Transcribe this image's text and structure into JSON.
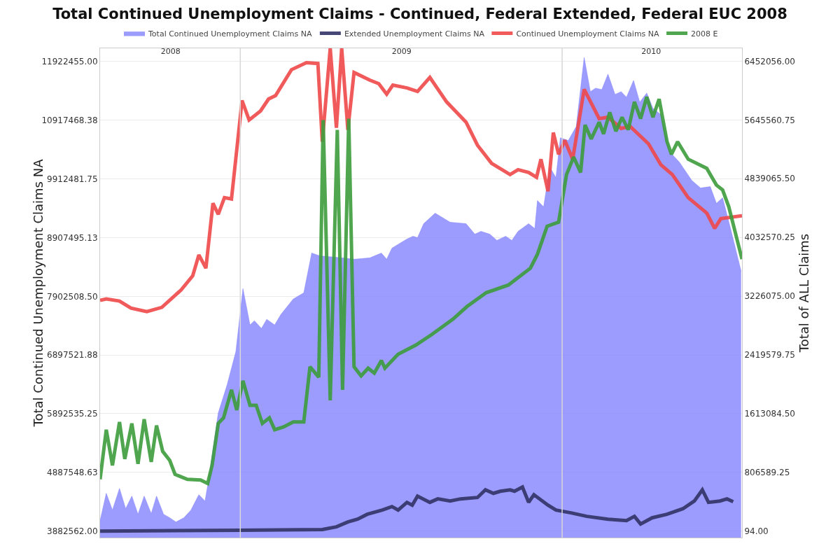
{
  "chart_data": {
    "type": "line",
    "title": "Total Continued Unemployment Claims - Continued, Federal Extended, Federal EUC 2008",
    "ylabel": "Total Continued Unemployment Claims NA",
    "y2label": "Total of ALL Claims",
    "legend": "top",
    "grid": "y",
    "marker": "none",
    "line_style": "solid",
    "xlim": [
      "2008-07-26",
      "2010-07-24"
    ],
    "xticks": [
      {
        "value": "2008-10-14",
        "label": "2008"
      },
      {
        "value": "2009-07-03",
        "label": "2009"
      },
      {
        "value": "2010-04-12",
        "label": "2010"
      }
    ],
    "ref_lines": [
      {
        "axis": "x",
        "value": "2009-01-01",
        "label": null,
        "color": "#d8d8d8"
      },
      {
        "axis": "x",
        "value": "2010-01-01",
        "label": null,
        "color": "#d8d8d8"
      }
    ],
    "ylim": [
      3770000,
      12150000
    ],
    "yticks": [
      {
        "value": 3882562,
        "label": "3882562.00"
      },
      {
        "value": 4887548.63,
        "label": "4887548.63"
      },
      {
        "value": 5892535.25,
        "label": "5892535.25"
      },
      {
        "value": 6897521.88,
        "label": "6897521.88"
      },
      {
        "value": 7902508.5,
        "label": "7902508.50"
      },
      {
        "value": 8907495.13,
        "label": "8907495.13"
      },
      {
        "value": 9912481.75,
        "label": "9912481.75"
      },
      {
        "value": 10917468.38,
        "label": "10917468.38"
      },
      {
        "value": 11922455,
        "label": "11922455.00"
      }
    ],
    "y2lim": [
      -90000,
      6630000
    ],
    "y2ticks": [
      {
        "value": 94,
        "label": "94.00"
      },
      {
        "value": 806589.25,
        "label": "806589.25"
      },
      {
        "value": 1613084.5,
        "label": "1613084.50"
      },
      {
        "value": 2419579.75,
        "label": "2419579.75"
      },
      {
        "value": 3226075,
        "label": "3226075.00"
      },
      {
        "value": 4032570.25,
        "label": "4032570.25"
      },
      {
        "value": 4839065.5,
        "label": "4839065.50"
      },
      {
        "value": 5645560.75,
        "label": "5645560.75"
      },
      {
        "value": 6452056,
        "label": "6452056.00"
      }
    ],
    "series": [
      {
        "name": "Total Continued Unemployment Claims NA",
        "type": "area",
        "color": "#8080ff",
        "x": [
          "2008-07-26",
          "2008-08-02",
          "2008-08-09",
          "2008-08-17",
          "2008-08-24",
          "2008-08-31",
          "2008-09-07",
          "2008-09-14",
          "2008-09-22",
          "2008-09-28",
          "2008-10-06",
          "2008-10-13",
          "2008-10-20",
          "2008-10-29",
          "2008-11-06",
          "2008-11-15",
          "2008-11-22",
          "2008-11-25",
          "2008-12-07",
          "2008-12-17",
          "2008-12-27",
          "2009-01-04",
          "2009-01-12",
          "2009-01-17",
          "2009-01-25",
          "2009-01-31",
          "2009-02-09",
          "2009-02-16",
          "2009-03-02",
          "2009-03-14",
          "2009-03-23",
          "2009-04-01",
          "2009-04-26",
          "2009-05-10",
          "2009-05-28",
          "2009-06-10",
          "2009-06-16",
          "2009-06-22",
          "2009-07-09",
          "2009-07-16",
          "2009-07-21",
          "2009-07-28",
          "2009-08-10",
          "2009-08-27",
          "2009-09-14",
          "2009-09-24",
          "2009-10-01",
          "2009-10-11",
          "2009-10-19",
          "2009-10-29",
          "2009-11-05",
          "2009-11-12",
          "2009-11-24",
          "2009-12-01",
          "2009-12-04",
          "2009-12-11",
          "2009-12-18",
          "2009-12-25",
          "2009-12-30",
          "2010-01-08",
          "2010-01-17",
          "2010-01-26",
          "2010-02-02",
          "2010-02-08",
          "2010-02-15",
          "2010-02-22",
          "2010-03-02",
          "2010-03-09",
          "2010-03-15",
          "2010-03-23",
          "2010-03-30",
          "2010-04-07",
          "2010-04-14",
          "2010-04-23",
          "2010-05-03",
          "2010-05-14",
          "2010-05-28",
          "2010-06-07",
          "2010-06-18",
          "2010-06-25",
          "2010-07-02",
          "2010-07-11",
          "2010-07-23"
        ],
        "values": [
          4062000,
          4529000,
          4241000,
          4612000,
          4265000,
          4481000,
          4170000,
          4481000,
          4182000,
          4481000,
          4170000,
          4110000,
          4038000,
          4110000,
          4241000,
          4505000,
          4397000,
          4660000,
          5905000,
          6383000,
          6957000,
          8034000,
          7412000,
          7484000,
          7352000,
          7508000,
          7412000,
          7591000,
          7855000,
          7962000,
          8644000,
          8596000,
          8561000,
          8537000,
          8561000,
          8644000,
          8537000,
          8728000,
          8884000,
          8931000,
          8907000,
          9147000,
          9326000,
          9171000,
          9147000,
          8967000,
          9015000,
          8967000,
          8860000,
          8931000,
          8860000,
          9015000,
          9147000,
          9063000,
          9542000,
          9434000,
          10116000,
          9936000,
          10618000,
          10570000,
          10810000,
          11994000,
          11408000,
          11468000,
          11444000,
          11707000,
          11360000,
          11408000,
          11312000,
          11599000,
          11228000,
          11384000,
          11121000,
          11013000,
          10379000,
          10200000,
          9888000,
          9757000,
          9781000,
          9494000,
          9589000,
          9063000,
          8333000
        ]
      },
      {
        "name": "Extended Unemployment Claims NA",
        "axis": "y2",
        "color": "#333366",
        "x": [
          "2008-07-26",
          "2009-01-01",
          "2009-04-04",
          "2009-04-20",
          "2009-05-03",
          "2009-05-14",
          "2009-05-25",
          "2009-06-11",
          "2009-06-22",
          "2009-06-29",
          "2009-07-09",
          "2009-07-15",
          "2009-07-21",
          "2009-08-04",
          "2009-08-13",
          "2009-08-27",
          "2009-09-08",
          "2009-09-27",
          "2009-10-06",
          "2009-10-15",
          "2009-10-23",
          "2009-11-03",
          "2009-11-08",
          "2009-11-17",
          "2009-11-24",
          "2009-11-30",
          "2009-12-16",
          "2009-12-25",
          "2010-01-11",
          "2010-01-29",
          "2010-02-22",
          "2010-03-15",
          "2010-03-24",
          "2010-03-31",
          "2010-04-13",
          "2010-04-30",
          "2010-05-18",
          "2010-05-31",
          "2010-06-09",
          "2010-06-16",
          "2010-06-29",
          "2010-07-07",
          "2010-07-14"
        ],
        "values": [
          0,
          10000,
          20000,
          58000,
          125000,
          163000,
          230000,
          288000,
          336000,
          288000,
          394000,
          355000,
          480000,
          394000,
          442000,
          413000,
          442000,
          461000,
          566000,
          518000,
          547000,
          566000,
          547000,
          605000,
          394000,
          499000,
          355000,
          288000,
          250000,
          202000,
          163000,
          144000,
          202000,
          96000,
          182000,
          230000,
          307000,
          413000,
          566000,
          394000,
          413000,
          442000,
          403000
        ]
      },
      {
        "name": "Continued Unemployment Claims NA",
        "axis": "y2",
        "color": "#f04848",
        "x": [
          "2008-07-26",
          "2008-08-02",
          "2008-08-17",
          "2008-08-30",
          "2008-09-17",
          "2008-10-04",
          "2008-10-26",
          "2008-11-08",
          "2008-11-15",
          "2008-11-23",
          "2008-12-01",
          "2008-12-07",
          "2008-12-14",
          "2008-12-22",
          "2009-01-03",
          "2009-01-11",
          "2009-01-24",
          "2009-02-02",
          "2009-02-10",
          "2009-02-28",
          "2009-03-17",
          "2009-03-30",
          "2009-04-04",
          "2009-04-13",
          "2009-04-20",
          "2009-04-26",
          "2009-05-03",
          "2009-05-10",
          "2009-05-28",
          "2009-06-07",
          "2009-06-16",
          "2009-06-23",
          "2009-07-09",
          "2009-07-21",
          "2009-08-04",
          "2009-08-23",
          "2009-09-14",
          "2009-09-27",
          "2009-10-13",
          "2009-11-03",
          "2009-11-12",
          "2009-11-24",
          "2009-12-03",
          "2009-12-08",
          "2009-12-16",
          "2009-12-22",
          "2009-12-28",
          "2010-01-04",
          "2010-01-13",
          "2010-01-26",
          "2010-02-12",
          "2010-02-22",
          "2010-03-09",
          "2010-03-19",
          "2010-04-09",
          "2010-04-23",
          "2010-05-06",
          "2010-05-24",
          "2010-06-14",
          "2010-06-23",
          "2010-06-30",
          "2010-07-24"
        ],
        "values": [
          3168000,
          3187000,
          3158000,
          3062000,
          3014000,
          3072000,
          3312000,
          3504000,
          3792000,
          3610000,
          4502000,
          4349000,
          4579000,
          4560000,
          5914000,
          5645000,
          5770000,
          5933000,
          5981000,
          6336000,
          6432000,
          6422000,
          5347000,
          6630000,
          5539000,
          6630000,
          5510000,
          6298000,
          6192000,
          6144000,
          6000000,
          6125000,
          6086000,
          6038000,
          6230000,
          5894000,
          5616000,
          5299000,
          5050000,
          4896000,
          4963000,
          4925000,
          4858000,
          5107000,
          4666000,
          5472000,
          5174000,
          5366000,
          5107000,
          6067000,
          5664000,
          5683000,
          5530000,
          5558000,
          5318000,
          5030000,
          4896000,
          4579000,
          4368000,
          4157000,
          4291000,
          4330000
        ]
      },
      {
        "name": "2008 E",
        "axis": "y2",
        "color": "#3c9c3c",
        "x": [
          "2008-07-26",
          "2008-08-02",
          "2008-08-09",
          "2008-08-17",
          "2008-08-23",
          "2008-08-31",
          "2008-09-07",
          "2008-09-14",
          "2008-09-22",
          "2008-09-28",
          "2008-10-05",
          "2008-10-13",
          "2008-10-19",
          "2008-11-02",
          "2008-11-17",
          "2008-11-25",
          "2008-11-30",
          "2008-12-07",
          "2008-12-13",
          "2008-12-22",
          "2008-12-28",
          "2009-01-04",
          "2009-01-12",
          "2009-01-19",
          "2009-01-26",
          "2009-02-03",
          "2009-02-09",
          "2009-02-19",
          "2009-03-02",
          "2009-03-14",
          "2009-03-21",
          "2009-03-31",
          "2009-04-05",
          "2009-04-13",
          "2009-04-21",
          "2009-04-27",
          "2009-05-04",
          "2009-05-10",
          "2009-05-18",
          "2009-05-26",
          "2009-06-02",
          "2009-06-10",
          "2009-06-14",
          "2009-06-29",
          "2009-07-19",
          "2009-08-06",
          "2009-08-30",
          "2009-09-15",
          "2009-10-07",
          "2009-11-01",
          "2009-11-26",
          "2009-12-04",
          "2009-12-15",
          "2009-12-28",
          "2010-01-06",
          "2010-01-14",
          "2010-01-22",
          "2010-01-27",
          "2010-02-03",
          "2010-02-12",
          "2010-02-17",
          "2010-02-24",
          "2010-03-03",
          "2010-03-10",
          "2010-03-17",
          "2010-03-24",
          "2010-03-31",
          "2010-04-07",
          "2010-04-14",
          "2010-04-21",
          "2010-04-30",
          "2010-05-05",
          "2010-05-12",
          "2010-05-24",
          "2010-06-14",
          "2010-06-25",
          "2010-07-02",
          "2010-07-09",
          "2010-07-24"
        ],
        "values": [
          710000,
          1392000,
          902000,
          1498000,
          989000,
          1478000,
          922000,
          1536000,
          950000,
          1450000,
          1094000,
          970000,
          778000,
          710000,
          701000,
          653000,
          902000,
          1478000,
          1555000,
          1939000,
          1661000,
          2064000,
          1728000,
          1728000,
          1478000,
          1555000,
          1392000,
          1430000,
          1498000,
          1498000,
          2256000,
          2112000,
          5645000,
          1795000,
          5510000,
          1939000,
          5664000,
          2256000,
          2131000,
          2237000,
          2170000,
          2342000,
          2237000,
          2429000,
          2554000,
          2698000,
          2909000,
          3082000,
          3274000,
          3379000,
          3610000,
          3802000,
          4186000,
          4243000,
          4896000,
          5136000,
          4925000,
          5578000,
          5386000,
          5616000,
          5453000,
          5750000,
          5491000,
          5683000,
          5510000,
          5894000,
          5664000,
          5962000,
          5683000,
          5933000,
          5347000,
          5174000,
          5347000,
          5107000,
          4982000,
          4752000,
          4685000,
          4454000,
          3734000
        ]
      }
    ]
  }
}
